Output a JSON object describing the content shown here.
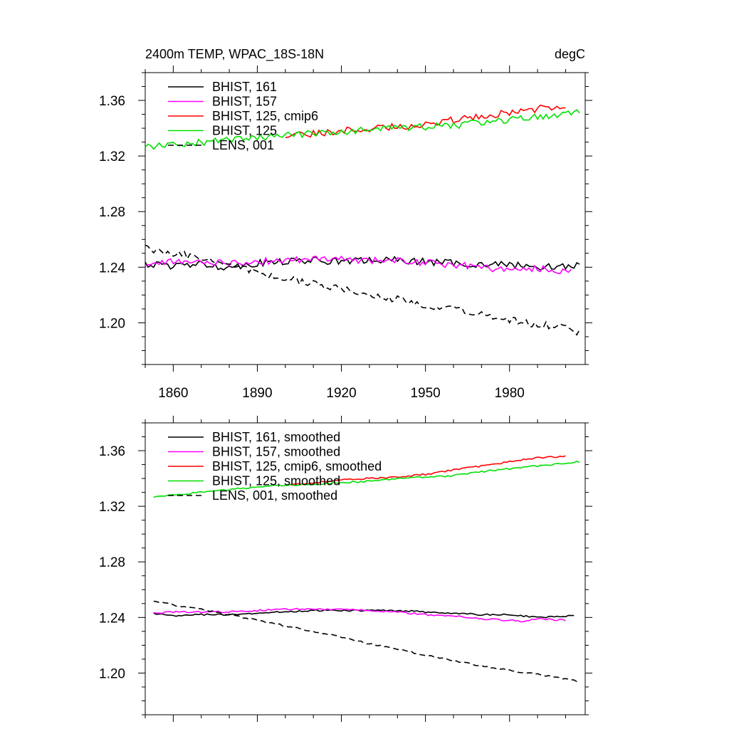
{
  "chart_data": [
    {
      "type": "line",
      "title": "2400m TEMP, WPAC_18S-18N",
      "units": "degC",
      "xlim": [
        1850,
        2007
      ],
      "ylim": [
        1.17,
        1.38
      ],
      "yticks": [
        1.2,
        1.24,
        1.28,
        1.32,
        1.36
      ],
      "ytick_labels": [
        "1.20",
        "1.24",
        "1.28",
        "1.32",
        "1.36"
      ],
      "xticks": [
        1860,
        1890,
        1920,
        1950,
        1980
      ],
      "xtick_labels": [
        "1860",
        "1890",
        "1920",
        "1950",
        "1980"
      ],
      "series": [
        {
          "name": "BHIST, 161",
          "color": "#000000",
          "dash": "none",
          "x": [
            1850,
            1860,
            1870,
            1880,
            1890,
            1900,
            1910,
            1920,
            1930,
            1940,
            1950,
            1960,
            1970,
            1980,
            1990,
            2000,
            2005
          ],
          "y": [
            1.242,
            1.241,
            1.242,
            1.24,
            1.243,
            1.244,
            1.245,
            1.244,
            1.245,
            1.245,
            1.244,
            1.243,
            1.242,
            1.242,
            1.24,
            1.241,
            1.241
          ]
        },
        {
          "name": "BHIST, 157",
          "color": "#ff00ff",
          "dash": "none",
          "x": [
            1850,
            1860,
            1870,
            1880,
            1890,
            1900,
            1910,
            1920,
            1930,
            1940,
            1950,
            1960,
            1970,
            1980,
            1990,
            2000,
            2002
          ],
          "y": [
            1.242,
            1.244,
            1.244,
            1.243,
            1.244,
            1.245,
            1.246,
            1.246,
            1.245,
            1.245,
            1.243,
            1.242,
            1.24,
            1.238,
            1.239,
            1.237,
            1.237
          ]
        },
        {
          "name": "BHIST, 125, cmip6",
          "color": "#ff0000",
          "dash": "none",
          "x": [
            1900,
            1910,
            1920,
            1930,
            1940,
            1950,
            1960,
            1970,
            1980,
            1990,
            2000
          ],
          "y": [
            1.334,
            1.336,
            1.338,
            1.34,
            1.341,
            1.343,
            1.346,
            1.349,
            1.351,
            1.354,
            1.357
          ]
        },
        {
          "name": "BHIST, 125",
          "color": "#00e000",
          "dash": "none",
          "x": [
            1850,
            1860,
            1870,
            1880,
            1890,
            1900,
            1910,
            1920,
            1930,
            1940,
            1950,
            1960,
            1970,
            1980,
            1990,
            2000,
            2005
          ],
          "y": [
            1.327,
            1.328,
            1.33,
            1.331,
            1.333,
            1.335,
            1.336,
            1.337,
            1.339,
            1.34,
            1.341,
            1.342,
            1.344,
            1.346,
            1.348,
            1.351,
            1.352
          ]
        },
        {
          "name": "LENS, 001",
          "color": "#000000",
          "dash": "8,5",
          "x": [
            1850,
            1860,
            1870,
            1880,
            1890,
            1900,
            1910,
            1920,
            1930,
            1940,
            1950,
            1960,
            1970,
            1980,
            1990,
            2000,
            2005
          ],
          "y": [
            1.254,
            1.25,
            1.247,
            1.243,
            1.236,
            1.232,
            1.228,
            1.224,
            1.22,
            1.217,
            1.213,
            1.21,
            1.206,
            1.202,
            1.199,
            1.197,
            1.193
          ]
        }
      ]
    },
    {
      "type": "line",
      "title": "",
      "xlim": [
        1850,
        2007
      ],
      "ylim": [
        1.17,
        1.38
      ],
      "yticks": [
        1.2,
        1.24,
        1.28,
        1.32,
        1.36
      ],
      "ytick_labels": [
        "1.20",
        "1.24",
        "1.28",
        "1.32",
        "1.36"
      ],
      "xticks": [
        1860,
        1890,
        1920,
        1950,
        1980
      ],
      "series": [
        {
          "name": "BHIST, 161, smoothed",
          "color": "#000000",
          "dash": "none",
          "x": [
            1853,
            1860,
            1870,
            1880,
            1890,
            1900,
            1910,
            1920,
            1930,
            1940,
            1950,
            1960,
            1970,
            1980,
            1990,
            2000,
            2003
          ],
          "y": [
            1.243,
            1.241,
            1.242,
            1.242,
            1.243,
            1.244,
            1.245,
            1.245,
            1.245,
            1.245,
            1.244,
            1.243,
            1.242,
            1.242,
            1.24,
            1.241,
            1.241
          ]
        },
        {
          "name": "BHIST, 157, smoothed",
          "color": "#ff00ff",
          "dash": "none",
          "x": [
            1853,
            1860,
            1870,
            1880,
            1890,
            1900,
            1910,
            1920,
            1930,
            1940,
            1950,
            1960,
            1970,
            1980,
            1985,
            1990,
            2000
          ],
          "y": [
            1.243,
            1.244,
            1.244,
            1.244,
            1.245,
            1.246,
            1.246,
            1.246,
            1.245,
            1.244,
            1.242,
            1.241,
            1.239,
            1.238,
            1.237,
            1.239,
            1.238
          ]
        },
        {
          "name": "BHIST, 125, cmip6, smoothed",
          "color": "#ff0000",
          "dash": "none",
          "x": [
            1900,
            1910,
            1920,
            1930,
            1940,
            1950,
            1960,
            1970,
            1980,
            1990,
            2000
          ],
          "y": [
            1.335,
            1.337,
            1.339,
            1.34,
            1.341,
            1.343,
            1.346,
            1.349,
            1.352,
            1.355,
            1.356
          ]
        },
        {
          "name": "BHIST, 125, smoothed",
          "color": "#00e000",
          "dash": "none",
          "x": [
            1853,
            1860,
            1870,
            1880,
            1890,
            1900,
            1910,
            1920,
            1930,
            1940,
            1950,
            1960,
            1970,
            1980,
            1990,
            2000,
            2005
          ],
          "y": [
            1.327,
            1.328,
            1.33,
            1.332,
            1.334,
            1.335,
            1.336,
            1.337,
            1.338,
            1.34,
            1.341,
            1.342,
            1.345,
            1.347,
            1.349,
            1.351,
            1.352
          ]
        },
        {
          "name": "LENS, 001, smoothed",
          "color": "#000000",
          "dash": "8,5",
          "x": [
            1853,
            1860,
            1870,
            1880,
            1890,
            1900,
            1910,
            1920,
            1930,
            1940,
            1950,
            1960,
            1970,
            1980,
            1990,
            2000,
            2005
          ],
          "y": [
            1.252,
            1.249,
            1.246,
            1.242,
            1.238,
            1.234,
            1.23,
            1.226,
            1.221,
            1.217,
            1.213,
            1.209,
            1.205,
            1.202,
            1.199,
            1.196,
            1.194
          ]
        }
      ]
    }
  ]
}
